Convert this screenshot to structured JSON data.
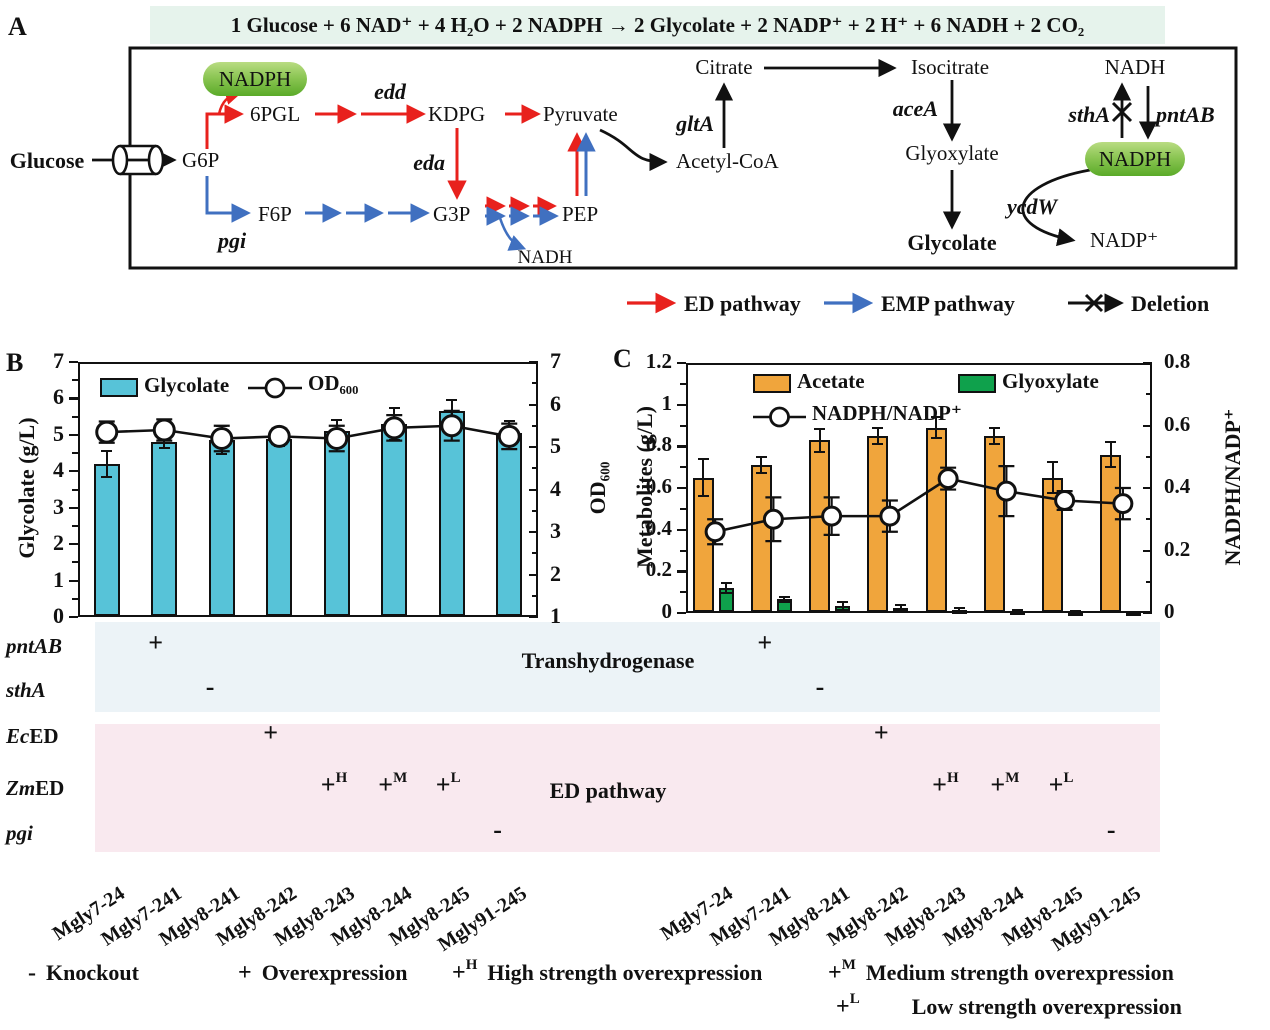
{
  "figure": {
    "panel_a_label": "A",
    "panel_b_label": "B",
    "panel_c_label": "C",
    "equation": "1 Glucose + 6 NAD⁺ + 4 H₂O + 2 NADPH  →  2 Glycolate + 2 NADP⁺ + 2 H⁺ + 6 NADH + 2 CO₂"
  },
  "colors": {
    "ed_pathway_red": "#e8211d",
    "emp_pathway_blue": "#4070c0",
    "glycolate_bar": "#57c3d8",
    "acetate_bar": "#f0a53c",
    "glyoxylate_bar": "#0fa14c",
    "nadph_pill_green": "#5aaa28",
    "equation_bg": "#e6f3ec",
    "transhydrogenase_band": "#ecf3f7",
    "ed_pathway_band": "#f9e9ef"
  },
  "pathway": {
    "nodes": {
      "glucose": "Glucose",
      "g6p": "G6P",
      "pgl6": "6PGL",
      "kdpg": "KDPG",
      "pyruvate": "Pyruvate",
      "f6p": "F6P",
      "g3p": "G3P",
      "pep": "PEP",
      "nadh_lower": "NADH",
      "nadph_left": "NADPH",
      "citrate": "Citrate",
      "isocitrate": "Isocitrate",
      "acetyl_coa": "Acetyl-CoA",
      "glyoxylate": "Glyoxylate",
      "glycolate": "Glycolate",
      "nadh_right": "NADH",
      "nadph_right": "NADPH",
      "nadp_plus": "NADP⁺"
    },
    "enzymes": {
      "edd": "edd",
      "eda": "eda",
      "pgi": "pgi",
      "gltA": "gltA",
      "aceA": "aceA",
      "ycdW": "ycdW",
      "sthA": "sthA",
      "pntAB": "pntAB"
    },
    "legend": {
      "ed": "ED pathway",
      "emp": "EMP pathway",
      "deletion": "Deletion"
    }
  },
  "strains": [
    "Mgly7-24",
    "Mgly7-241",
    "Mgly8-241",
    "Mgly8-242",
    "Mgly8-243",
    "Mgly8-244",
    "Mgly8-245",
    "Mgly91-245"
  ],
  "chart_data": [
    {
      "id": "B",
      "type": "bar",
      "categories": [
        "Mgly7-24",
        "Mgly7-241",
        "Mgly8-241",
        "Mgly8-242",
        "Mgly8-243",
        "Mgly8-244",
        "Mgly8-245",
        "Mgly91-245"
      ],
      "bar_series": [
        {
          "name": "Glycolate",
          "color": "#57c3d8",
          "values": [
            4.2,
            4.8,
            4.85,
            4.9,
            5.1,
            5.3,
            5.65,
            5.05
          ],
          "errors": [
            0.35,
            0.15,
            0.38,
            0.2,
            0.32,
            0.45,
            0.3,
            0.33
          ]
        }
      ],
      "line_series": {
        "name": "OD₆₀₀",
        "axis": "right",
        "values": [
          5.35,
          5.4,
          5.2,
          5.25,
          5.2,
          5.45,
          5.5,
          5.25
        ],
        "errors": [
          0.25,
          0.25,
          0.3,
          0.18,
          0.3,
          0.3,
          0.35,
          0.3
        ]
      },
      "left_axis": {
        "label": "Glycolate (g/L)",
        "min": 0,
        "max": 7,
        "step": 1
      },
      "right_axis": {
        "label": "OD₆₀₀",
        "min": 1,
        "max": 7,
        "step": 1
      },
      "grid": false,
      "legend_position": "top-inside"
    },
    {
      "id": "C",
      "type": "bar",
      "categories": [
        "Mgly7-24",
        "Mgly7-241",
        "Mgly8-241",
        "Mgly8-242",
        "Mgly8-243",
        "Mgly8-244",
        "Mgly8-245",
        "Mgly91-245"
      ],
      "bar_series": [
        {
          "name": "Acetate",
          "color": "#f0a53c",
          "values": [
            0.65,
            0.71,
            0.83,
            0.85,
            0.89,
            0.85,
            0.65,
            0.76
          ],
          "errors": [
            0.09,
            0.04,
            0.055,
            0.04,
            0.05,
            0.04,
            0.075,
            0.06
          ]
        },
        {
          "name": "Glyoxylate",
          "color": "#0fa14c",
          "values": [
            0.12,
            0.065,
            0.035,
            0.025,
            0.015,
            0.01,
            0.006,
            0.004
          ],
          "errors": [
            0.025,
            0.012,
            0.02,
            0.012,
            0.008,
            0.004,
            0.003,
            0.002
          ]
        }
      ],
      "line_series": {
        "name": "NADPH/NADP⁺",
        "axis": "right",
        "values": [
          0.26,
          0.3,
          0.31,
          0.31,
          0.43,
          0.39,
          0.36,
          0.35
        ],
        "errors": [
          0.04,
          0.07,
          0.06,
          0.05,
          0.035,
          0.08,
          0.03,
          0.05
        ]
      },
      "left_axis": {
        "label": "Metabolites (g/L)",
        "min": 0,
        "max": 1.2,
        "step": 0.2
      },
      "right_axis": {
        "label": "NADPH/NADP⁺",
        "min": 0,
        "max": 0.8,
        "step": 0.2
      },
      "grid": false,
      "legend_position": "top-inside"
    }
  ],
  "genotype": {
    "group_labels": {
      "transhydrogenase": "Transhydrogenase",
      "ed_pathway": "ED pathway"
    },
    "rows": [
      {
        "gene_italic": "pntAB",
        "gene_roman": "",
        "marks": [
          {
            "col": 1,
            "sign": "+",
            "sup": ""
          }
        ]
      },
      {
        "gene_italic": "sthA",
        "gene_roman": "",
        "marks": [
          {
            "col": 2,
            "sign": "-",
            "sup": ""
          }
        ]
      },
      {
        "gene_italic": "Ec",
        "gene_roman": "ED",
        "marks": [
          {
            "col": 3,
            "sign": "+",
            "sup": ""
          }
        ]
      },
      {
        "gene_italic": "Zm",
        "gene_roman": "ED",
        "marks": [
          {
            "col": 4,
            "sign": "+",
            "sup": "H"
          },
          {
            "col": 5,
            "sign": "+",
            "sup": "M"
          },
          {
            "col": 6,
            "sign": "+",
            "sup": "L"
          }
        ]
      },
      {
        "gene_italic": "pgi",
        "gene_roman": "",
        "marks": [
          {
            "col": 7,
            "sign": "-",
            "sup": ""
          }
        ]
      }
    ]
  },
  "footnotes": [
    {
      "sign": "-",
      "sup": "",
      "label": "Knockout"
    },
    {
      "sign": "+",
      "sup": "",
      "label": "Overexpression"
    },
    {
      "sign": "+",
      "sup": "H",
      "label": "High strength overexpression"
    },
    {
      "sign": "+",
      "sup": "M",
      "label": "Medium strength overexpression"
    },
    {
      "sign": "+",
      "sup": "L",
      "label": "Low strength overexpression"
    }
  ]
}
